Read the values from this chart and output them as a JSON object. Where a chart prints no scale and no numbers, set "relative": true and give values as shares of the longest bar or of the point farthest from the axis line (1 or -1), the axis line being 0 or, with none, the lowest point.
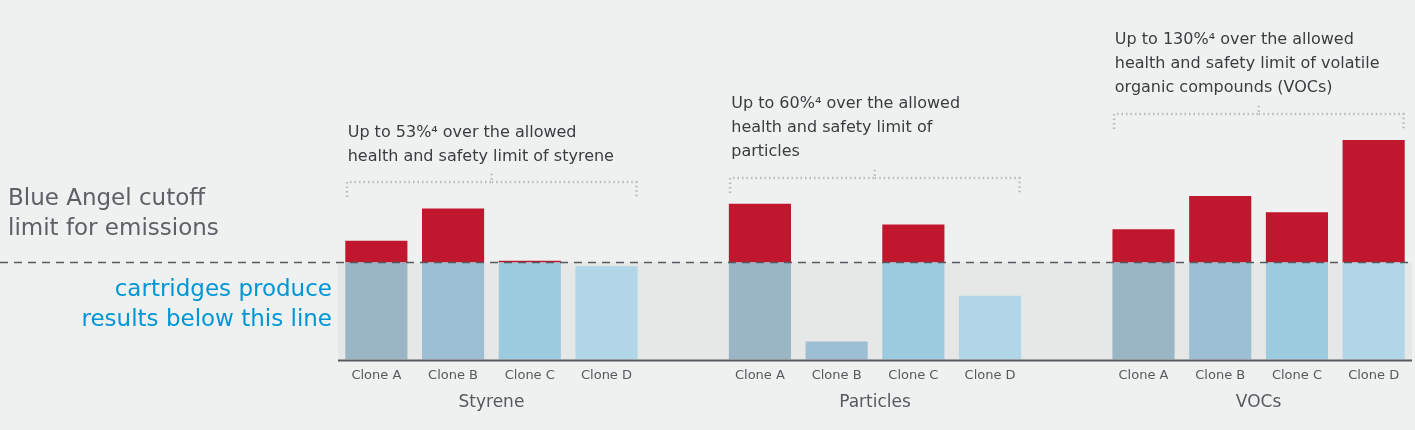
{
  "chart_data": {
    "type": "bar",
    "stacked": true,
    "relative": true,
    "categories": [
      "Clone A",
      "Clone B",
      "Clone C",
      "Clone D",
      null,
      "Clone A",
      "Clone B",
      "Clone C",
      "Clone D",
      null,
      "Clone A",
      "Clone B",
      "Clone C",
      "Clone D"
    ],
    "series": [
      {
        "colors": [
          "#9ab5c4",
          "#9dbfd3",
          "#9ccbe0",
          "#b1d6e7",
          null,
          "#9ab5c4",
          "#9dbfd3",
          "#9ccbe0",
          "#b1d6e7",
          null,
          "#9ab5c4",
          "#9dbfd3",
          "#9ccbe0",
          "#b1d6e7"
        ],
        "values": [
          0.442,
          0.442,
          0.442,
          0.424,
          null,
          0.442,
          0.082,
          0.442,
          0.29,
          null,
          0.442,
          0.442,
          0.442,
          0.442
        ]
      },
      {
        "color": "#c0172f",
        "values": [
          0.099,
          0.246,
          0.008,
          null,
          null,
          0.268,
          null,
          0.173,
          null,
          null,
          0.151,
          0.303,
          0.229,
          0.558
        ]
      }
    ],
    "ref_lines": [
      {
        "axis": "y",
        "value": 0.442,
        "label": "Blue Angel cutoff limit for emissions",
        "color": "#555a5f",
        "line_style": "dashed"
      }
    ],
    "bands": [
      {
        "axis": "y",
        "from": 0,
        "to": 0.442,
        "label": "cartridges produce results below this line",
        "color": "#e6e8e8"
      }
    ],
    "annotations": [
      "Up to 53%⁴ over the allowed health and safety limit of styrene",
      "Up to 60%⁴ over the allowed health and safety limit of particles",
      "Up to 130%⁴ over the allowed health and safety limit of volatile organic compounds (VOCs)",
      "Styrene",
      "Particles",
      "VOCs"
    ],
    "legend": false,
    "grid": false
  }
}
